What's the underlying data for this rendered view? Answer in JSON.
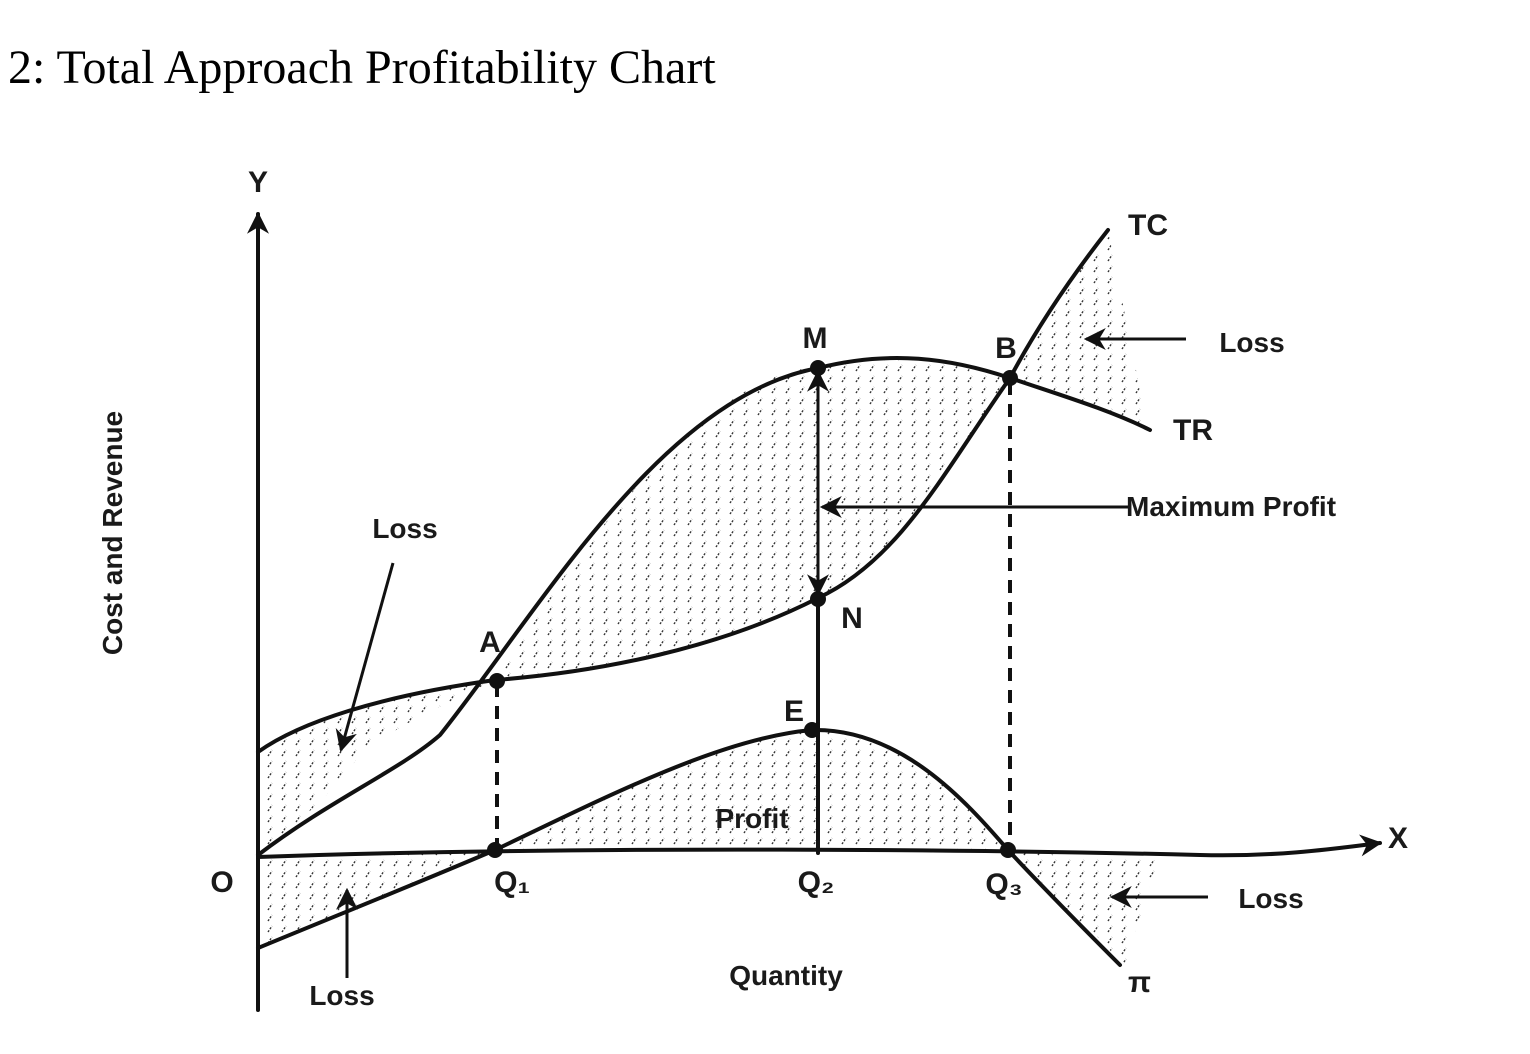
{
  "title": "2: Total Approach Profitability Chart",
  "axes": {
    "x_label": "Quantity",
    "y_label": "Cost and Revenue",
    "x_symbol": "X",
    "y_symbol": "Y",
    "origin": "O"
  },
  "curves": {
    "tc": "TC",
    "tr": "TR",
    "profit": "π"
  },
  "points": {
    "a": "A",
    "b": "B",
    "m": "M",
    "n": "N",
    "e": "E"
  },
  "quantities": {
    "q1": "Q₁",
    "q2": "Q₂",
    "q3": "Q₃"
  },
  "annotations": {
    "loss_upper_left": "Loss",
    "loss_upper_right": "Loss",
    "loss_lower_left": "Loss",
    "loss_lower_right": "Loss",
    "maximum_profit": "Maximum Profit",
    "profit": "Profit"
  },
  "colors": {
    "ink": "#111111",
    "background": "#ffffff"
  }
}
